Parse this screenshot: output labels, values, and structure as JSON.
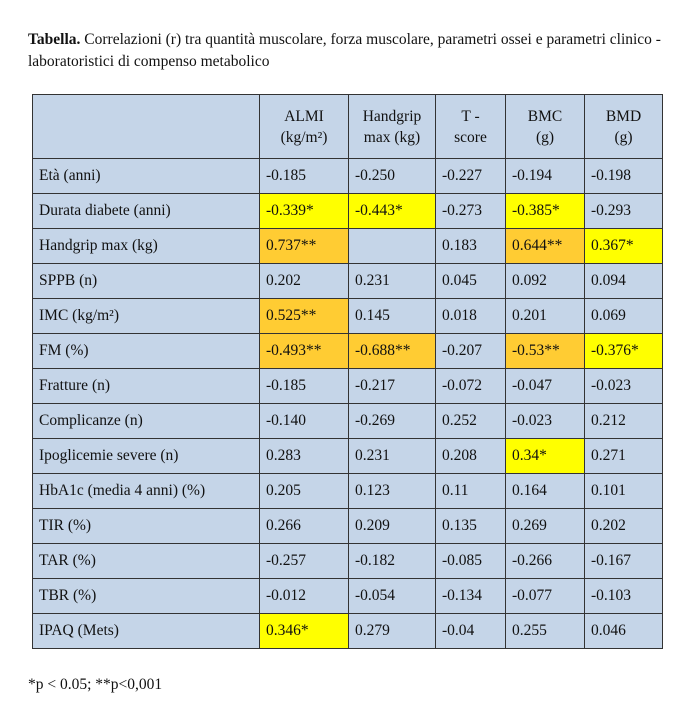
{
  "caption": {
    "label": "Tabella.",
    "text": " Correlazioni (r) tra quantità muscolare, forza muscolare, parametri ossei e parametri clinico - laboratoristici di compenso metabolico"
  },
  "table": {
    "headers": [
      {
        "line1": "",
        "line2": ""
      },
      {
        "line1": "ALMI",
        "line2": "(kg/m²)"
      },
      {
        "line1": "Handgrip",
        "line2": "max (kg)"
      },
      {
        "line1": "T -",
        "line2": "score"
      },
      {
        "line1": "BMC",
        "line2": "(g)"
      },
      {
        "line1": "BMD",
        "line2": "(g)"
      }
    ],
    "rows": [
      {
        "label": "Età (anni)",
        "cells": [
          {
            "v": "-0.185",
            "hl": ""
          },
          {
            "v": "-0.250",
            "hl": ""
          },
          {
            "v": "-0.227",
            "hl": ""
          },
          {
            "v": "-0.194",
            "hl": ""
          },
          {
            "v": "-0.198",
            "hl": ""
          }
        ]
      },
      {
        "label": "Durata diabete (anni)",
        "cells": [
          {
            "v": "-0.339*",
            "hl": "yellow"
          },
          {
            "v": "-0.443*",
            "hl": "yellow"
          },
          {
            "v": "-0.273",
            "hl": ""
          },
          {
            "v": "-0.385*",
            "hl": "yellow"
          },
          {
            "v": "-0.293",
            "hl": ""
          }
        ]
      },
      {
        "label": "Handgrip max (kg)",
        "cells": [
          {
            "v": "0.737**",
            "hl": "orange"
          },
          {
            "v": "",
            "hl": ""
          },
          {
            "v": "0.183",
            "hl": ""
          },
          {
            "v": "0.644**",
            "hl": "orange"
          },
          {
            "v": "0.367*",
            "hl": "yellow"
          }
        ]
      },
      {
        "label": "SPPB (n)",
        "cells": [
          {
            "v": "0.202",
            "hl": ""
          },
          {
            "v": "0.231",
            "hl": ""
          },
          {
            "v": "0.045",
            "hl": ""
          },
          {
            "v": "0.092",
            "hl": ""
          },
          {
            "v": "0.094",
            "hl": ""
          }
        ]
      },
      {
        "label": "IMC (kg/m²)",
        "cells": [
          {
            "v": "0.525**",
            "hl": "orange"
          },
          {
            "v": "0.145",
            "hl": ""
          },
          {
            "v": "0.018",
            "hl": ""
          },
          {
            "v": "0.201",
            "hl": ""
          },
          {
            "v": "0.069",
            "hl": ""
          }
        ]
      },
      {
        "label": "FM (%)",
        "cells": [
          {
            "v": "-0.493**",
            "hl": "orange"
          },
          {
            "v": "-0.688**",
            "hl": "orange"
          },
          {
            "v": "-0.207",
            "hl": ""
          },
          {
            "v": "-0.53**",
            "hl": "orange"
          },
          {
            "v": "-0.376*",
            "hl": "yellow"
          }
        ]
      },
      {
        "label": "Fratture (n)",
        "cells": [
          {
            "v": "-0.185",
            "hl": ""
          },
          {
            "v": "-0.217",
            "hl": ""
          },
          {
            "v": "-0.072",
            "hl": ""
          },
          {
            "v": "-0.047",
            "hl": ""
          },
          {
            "v": "-0.023",
            "hl": ""
          }
        ]
      },
      {
        "label": "Complicanze (n)",
        "cells": [
          {
            "v": "-0.140",
            "hl": ""
          },
          {
            "v": "-0.269",
            "hl": ""
          },
          {
            "v": "0.252",
            "hl": ""
          },
          {
            "v": "-0.023",
            "hl": ""
          },
          {
            "v": "0.212",
            "hl": ""
          }
        ]
      },
      {
        "label": "Ipoglicemie severe (n)",
        "cells": [
          {
            "v": "0.283",
            "hl": ""
          },
          {
            "v": "0.231",
            "hl": ""
          },
          {
            "v": "0.208",
            "hl": ""
          },
          {
            "v": "0.34*",
            "hl": "yellow"
          },
          {
            "v": "0.271",
            "hl": ""
          }
        ]
      },
      {
        "label": "HbA1c (media 4 anni) (%)",
        "cells": [
          {
            "v": "0.205",
            "hl": ""
          },
          {
            "v": "0.123",
            "hl": ""
          },
          {
            "v": "0.11",
            "hl": ""
          },
          {
            "v": "0.164",
            "hl": ""
          },
          {
            "v": "0.101",
            "hl": ""
          }
        ]
      },
      {
        "label": "TIR (%)",
        "cells": [
          {
            "v": "0.266",
            "hl": ""
          },
          {
            "v": "0.209",
            "hl": ""
          },
          {
            "v": "0.135",
            "hl": ""
          },
          {
            "v": "0.269",
            "hl": ""
          },
          {
            "v": "0.202",
            "hl": ""
          }
        ]
      },
      {
        "label": "TAR (%)",
        "cells": [
          {
            "v": "-0.257",
            "hl": ""
          },
          {
            "v": "-0.182",
            "hl": ""
          },
          {
            "v": "-0.085",
            "hl": ""
          },
          {
            "v": "-0.266",
            "hl": ""
          },
          {
            "v": "-0.167",
            "hl": ""
          }
        ]
      },
      {
        "label": "TBR (%)",
        "cells": [
          {
            "v": "-0.012",
            "hl": ""
          },
          {
            "v": "-0.054",
            "hl": ""
          },
          {
            "v": "-0.134",
            "hl": ""
          },
          {
            "v": "-0.077",
            "hl": ""
          },
          {
            "v": "-0.103",
            "hl": ""
          }
        ]
      },
      {
        "label": "IPAQ (Mets)",
        "cells": [
          {
            "v": "0.346*",
            "hl": "yellow"
          },
          {
            "v": "0.279",
            "hl": ""
          },
          {
            "v": "-0.04",
            "hl": ""
          },
          {
            "v": "0.255",
            "hl": ""
          },
          {
            "v": "0.046",
            "hl": ""
          }
        ]
      }
    ]
  },
  "footnote": "*p < 0.05; **p<0,001",
  "colors": {
    "cell_background": "#c5d5e8",
    "highlight_yellow": "#ffff00",
    "highlight_orange": "#ffcc33",
    "border": "#333333"
  }
}
